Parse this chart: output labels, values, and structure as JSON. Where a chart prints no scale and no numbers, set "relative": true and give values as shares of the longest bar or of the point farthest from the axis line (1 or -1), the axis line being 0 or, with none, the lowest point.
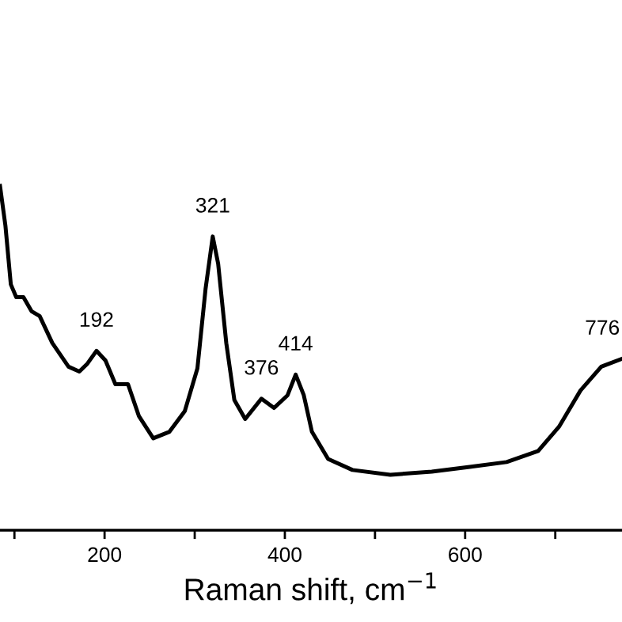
{
  "chart_data": {
    "type": "line",
    "xlabel": "Raman shift, cm$^{−1}$",
    "relative": true,
    "color": "#000000",
    "x": [
      84,
      90,
      96,
      102,
      110,
      119,
      128,
      142,
      160,
      172,
      181,
      191,
      201,
      212,
      226,
      238,
      254,
      272,
      289,
      303,
      312,
      320,
      326,
      335,
      344,
      356,
      374,
      388,
      403,
      412,
      421,
      430,
      448,
      475,
      517,
      563,
      605,
      646,
      681,
      704,
      728,
      751,
      774
    ],
    "values": [
      1.0,
      0.885,
      0.714,
      0.677,
      0.677,
      0.636,
      0.622,
      0.544,
      0.475,
      0.461,
      0.484,
      0.521,
      0.493,
      0.424,
      0.424,
      0.332,
      0.267,
      0.286,
      0.346,
      0.47,
      0.7,
      0.853,
      0.774,
      0.544,
      0.378,
      0.323,
      0.382,
      0.355,
      0.392,
      0.452,
      0.392,
      0.286,
      0.207,
      0.175,
      0.161,
      0.17,
      0.184,
      0.198,
      0.23,
      0.3,
      0.406,
      0.475,
      0.498
    ],
    "xlim": [
      84,
      774
    ],
    "xticks": [
      {
        "value": 100,
        "label": null
      },
      200,
      {
        "value": 300,
        "label": null
      },
      400,
      {
        "value": 500,
        "label": null
      },
      600,
      {
        "value": 700,
        "label": null
      }
    ],
    "tick_labels": "x",
    "grid": false,
    "legend": false,
    "marker": "none",
    "line_style": "solid",
    "annotations": [
      {
        "text": "192",
        "x": 191,
        "y": 0.521
      },
      {
        "text": "321",
        "x": 320,
        "y": 0.853
      },
      {
        "text": "376",
        "x": 374,
        "y": 0.382
      },
      {
        "text": "414",
        "x": 412,
        "y": 0.452
      },
      {
        "text": "776",
        "x": 776,
        "y": 0.498
      }
    ]
  }
}
